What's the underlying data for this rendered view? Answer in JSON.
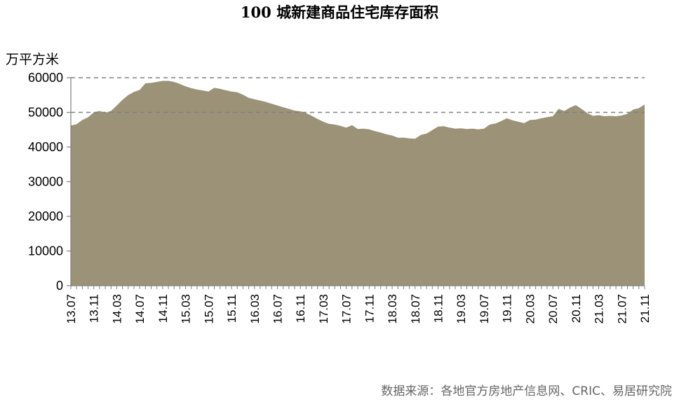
{
  "chart_data": {
    "type": "area",
    "title": "100 城新建商品住宅库存面积",
    "ylabel": "万平方米",
    "source": "数据来源：各地官方房地产信息网、CRIC、易居研究院",
    "ylim": [
      0,
      60000
    ],
    "yticks": [
      0,
      10000,
      20000,
      30000,
      40000,
      50000,
      60000
    ],
    "reference_lines": [
      50000,
      60000
    ],
    "fill_color": "#9b9277",
    "categories": [
      "13.07",
      "13.08",
      "13.09",
      "13.10",
      "13.11",
      "13.12",
      "14.01",
      "14.02",
      "14.03",
      "14.04",
      "14.05",
      "14.06",
      "14.07",
      "14.08",
      "14.09",
      "14.10",
      "14.11",
      "14.12",
      "15.01",
      "15.02",
      "15.03",
      "15.04",
      "15.05",
      "15.06",
      "15.07",
      "15.08",
      "15.09",
      "15.10",
      "15.11",
      "15.12",
      "16.01",
      "16.02",
      "16.03",
      "16.04",
      "16.05",
      "16.06",
      "16.07",
      "16.08",
      "16.09",
      "16.10",
      "16.11",
      "16.12",
      "17.01",
      "17.02",
      "17.03",
      "17.04",
      "17.05",
      "17.06",
      "17.07",
      "17.08",
      "17.09",
      "17.10",
      "17.11",
      "17.12",
      "18.01",
      "18.02",
      "18.03",
      "18.04",
      "18.05",
      "18.06",
      "18.07",
      "18.08",
      "18.09",
      "18.10",
      "18.11",
      "18.12",
      "19.01",
      "19.02",
      "19.03",
      "19.04",
      "19.05",
      "19.06",
      "19.07",
      "19.08",
      "19.09",
      "19.10",
      "19.11",
      "19.12",
      "20.01",
      "20.02",
      "20.03",
      "20.04",
      "20.05",
      "20.06",
      "20.07",
      "20.08",
      "20.09",
      "20.10",
      "20.11",
      "20.12",
      "21.01",
      "21.02",
      "21.03",
      "21.04",
      "21.05",
      "21.06",
      "21.07",
      "21.08",
      "21.09",
      "21.10",
      "21.11"
    ],
    "tick_labels": [
      "13.07",
      "13.11",
      "14.03",
      "14.07",
      "14.11",
      "15.03",
      "15.07",
      "15.11",
      "16.03",
      "16.07",
      "16.11",
      "17.03",
      "17.07",
      "17.11",
      "18.03",
      "18.07",
      "18.11",
      "19.03",
      "19.07",
      "19.11",
      "20.03",
      "20.07",
      "20.11",
      "21.03",
      "21.07",
      "21.11"
    ],
    "values": [
      46200,
      46600,
      47800,
      48600,
      50000,
      50400,
      49900,
      50400,
      52000,
      53600,
      55000,
      55900,
      56500,
      58400,
      58500,
      58800,
      59100,
      59100,
      58800,
      58200,
      57500,
      57000,
      56600,
      56300,
      56000,
      57100,
      56800,
      56400,
      56000,
      55800,
      55100,
      54200,
      53800,
      53400,
      53000,
      52500,
      52000,
      51500,
      51000,
      50500,
      50300,
      49800,
      49000,
      48100,
      47300,
      46700,
      46500,
      46100,
      45600,
      46300,
      45200,
      45300,
      45100,
      44600,
      44200,
      43700,
      43300,
      42700,
      42700,
      42500,
      42400,
      43500,
      43900,
      44900,
      45900,
      46000,
      45600,
      45300,
      45400,
      45200,
      45300,
      45100,
      45300,
      46500,
      46800,
      47500,
      48300,
      47700,
      47300,
      46900,
      47800,
      47900,
      48300,
      48600,
      48900,
      51000,
      50400,
      51400,
      52100,
      51000,
      49800,
      49000,
      49200,
      48900,
      49000,
      48900,
      49100,
      49600,
      50800,
      51200,
      52300
    ]
  }
}
